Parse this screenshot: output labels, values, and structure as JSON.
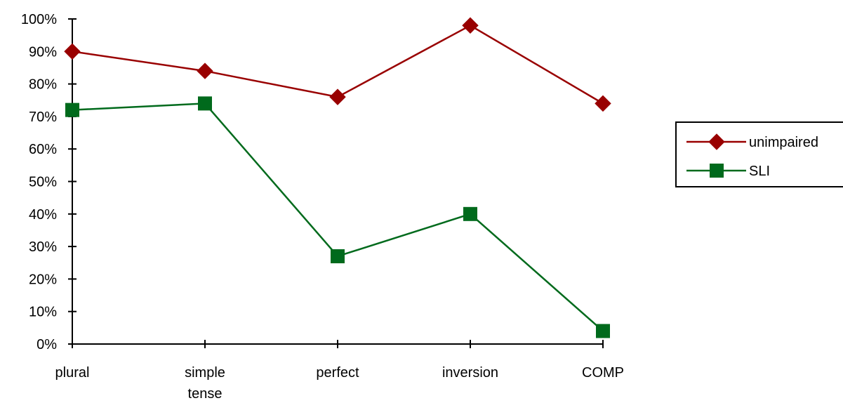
{
  "chart_data": {
    "type": "line",
    "categories": [
      "plural",
      "simple tense",
      "perfect",
      "inversion",
      "COMP"
    ],
    "category_lines": [
      [
        "plural"
      ],
      [
        "simple",
        "tense"
      ],
      [
        "perfect"
      ],
      [
        "inversion"
      ],
      [
        "COMP"
      ]
    ],
    "y_ticks": [
      "0%",
      "10%",
      "20%",
      "30%",
      "40%",
      "50%",
      "60%",
      "70%",
      "80%",
      "90%",
      "100%"
    ],
    "ylim": [
      0,
      100
    ],
    "y_unit": "%",
    "grid": false,
    "legend_position": "right",
    "series": [
      {
        "name": "unimpaired",
        "values": [
          90,
          84,
          76,
          98,
          74
        ],
        "color": "#990000",
        "marker": "diamond"
      },
      {
        "name": "SLI",
        "values": [
          72,
          74,
          27,
          40,
          4
        ],
        "color": "#006a1c",
        "marker": "square"
      }
    ]
  }
}
